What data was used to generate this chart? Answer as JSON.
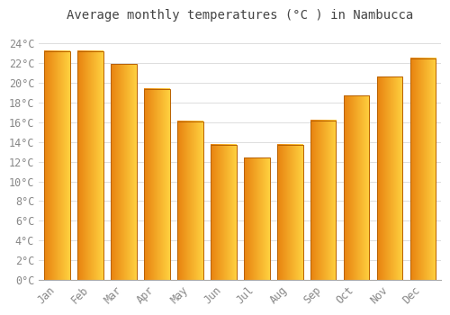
{
  "title": "Average monthly temperatures (°C ) in Nambucca",
  "months": [
    "Jan",
    "Feb",
    "Mar",
    "Apr",
    "May",
    "Jun",
    "Jul",
    "Aug",
    "Sep",
    "Oct",
    "Nov",
    "Dec"
  ],
  "values": [
    23.2,
    23.2,
    21.9,
    19.4,
    16.1,
    13.7,
    12.4,
    13.7,
    16.2,
    18.7,
    20.6,
    22.5
  ],
  "bar_color_left": "#FFD050",
  "bar_color_right": "#E8820A",
  "bar_edge_color": "#B86000",
  "background_color": "#FFFFFF",
  "grid_color": "#DDDDDD",
  "text_color": "#888888",
  "title_color": "#444444",
  "yticks": [
    0,
    2,
    4,
    6,
    8,
    10,
    12,
    14,
    16,
    18,
    20,
    22,
    24
  ],
  "ylim": [
    0,
    25.5
  ],
  "title_fontsize": 10,
  "tick_fontsize": 8.5,
  "font_family": "monospace"
}
